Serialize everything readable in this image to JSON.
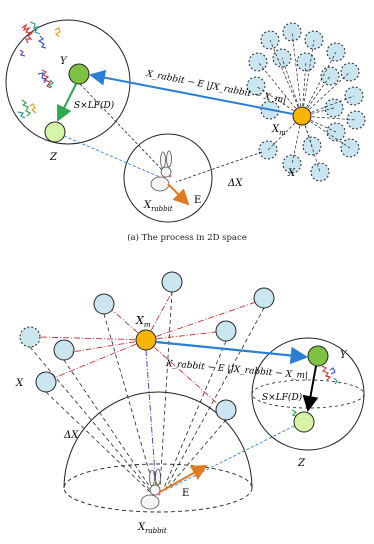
{
  "top": {
    "label_y": "Y",
    "label_z": "Z",
    "label_x": "X",
    "label_xm": "Xm",
    "label_xm_base": "X",
    "label_xm_sub": "m",
    "label_delta_x": "ΔX",
    "label_e": "E",
    "label_xrabbit_base": "X",
    "label_xrabbit_sub": "rabbit",
    "label_levy": "S×LF(D)",
    "formula": "X_rabbit − E |JX_rabbit − X_m|",
    "caption": "(a) The process in 2D space"
  },
  "bottom": {
    "label_y": "Y",
    "label_z": "Z",
    "label_x": "X",
    "label_xm_base": "X",
    "label_xm_sub": "m",
    "label_delta_x": "ΔX",
    "label_e": "E",
    "label_xrabbit_base": "X",
    "label_xrabbit_sub": "rabbit",
    "label_levy": "S×LF(D)",
    "formula": "X_rabbit − E |JX_rabbit − X_m|"
  },
  "colors": {
    "hawk_fill": "#c9e6f0",
    "best_fill": "#f7b500",
    "y_fill": "#7dc242",
    "z_fill": "#d6f5a6",
    "blue_arrow": "#2a7fd4",
    "green_arrow": "#2fa84f",
    "orange_arrow": "#e07b22",
    "red_dash": "#c83232"
  }
}
